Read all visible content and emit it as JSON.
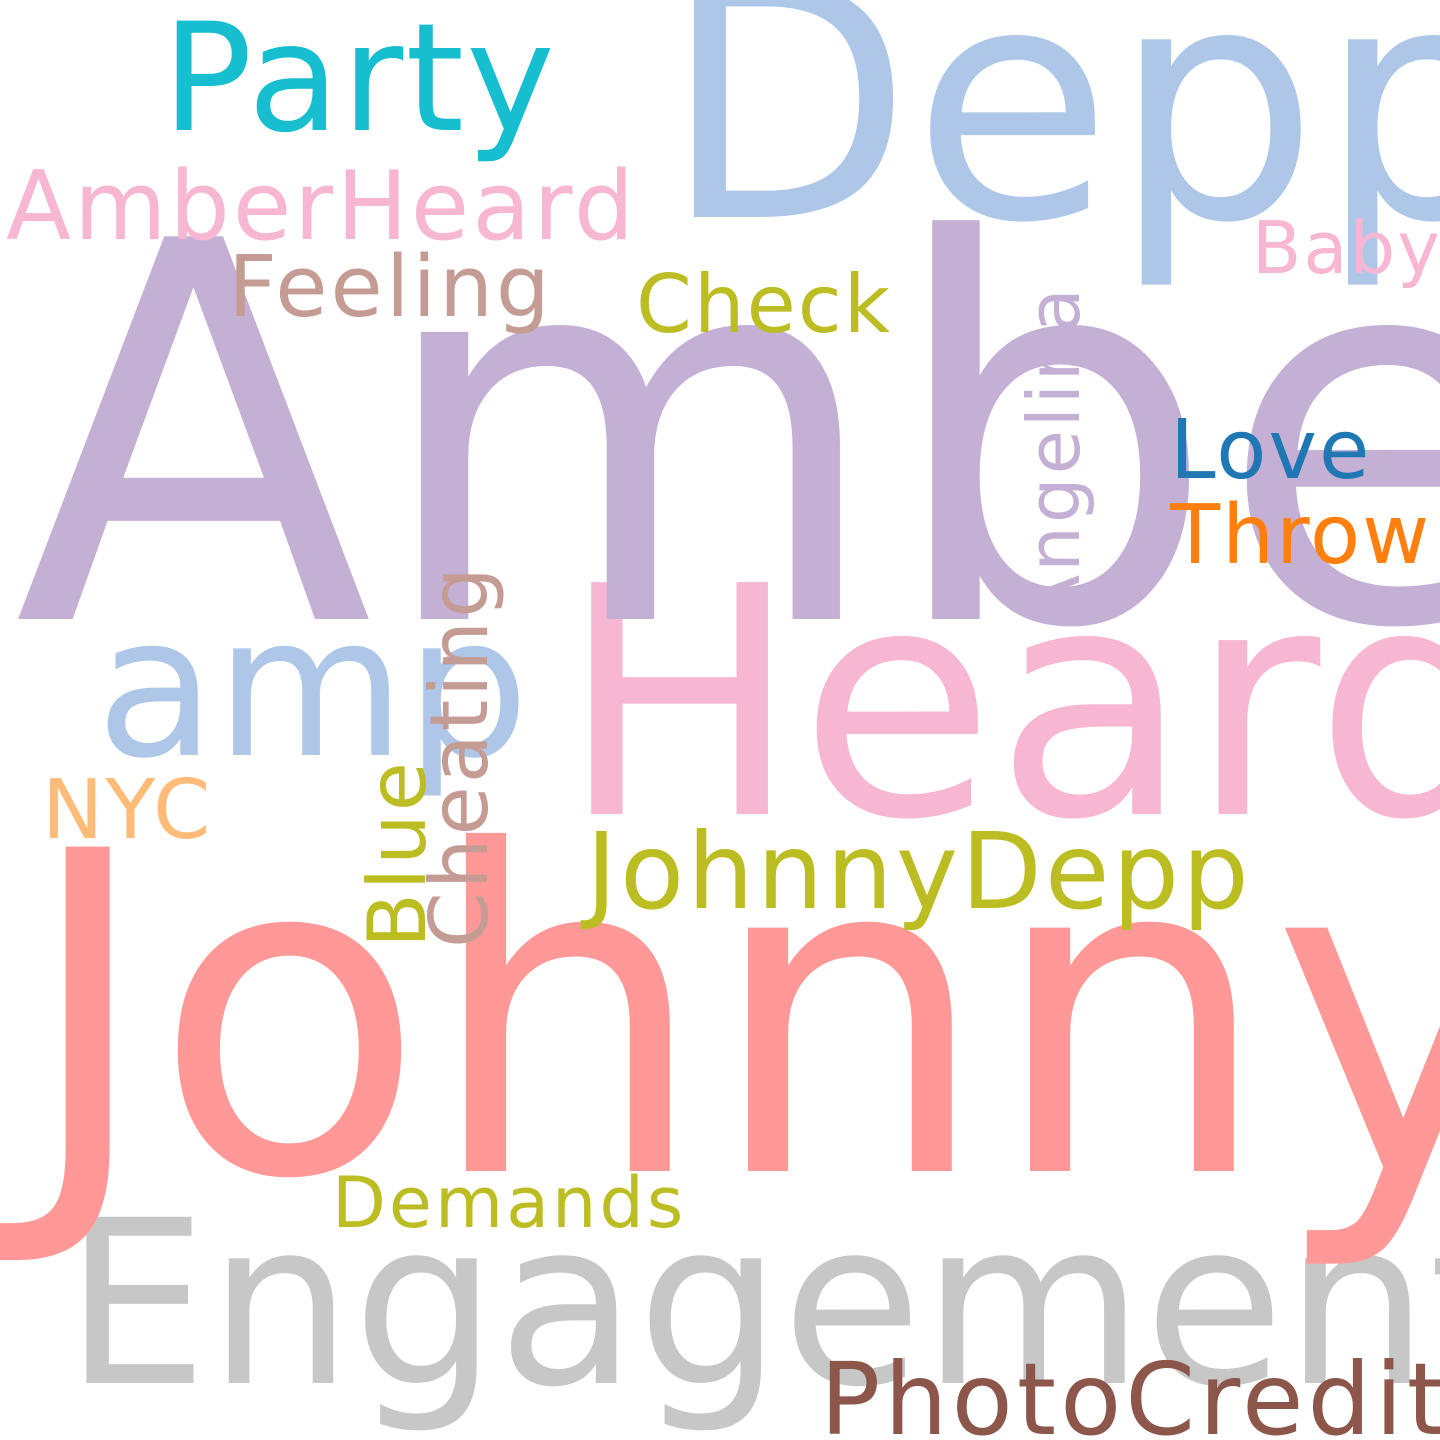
{
  "background": "#ffffff",
  "words": {
    "party": {
      "text": "Party",
      "color": "#17becf"
    },
    "depp": {
      "text": "Depp",
      "color": "#aec7e8"
    },
    "amberheard": {
      "text": "AmberHeard",
      "color": "#f7b6d2"
    },
    "baby": {
      "text": "Baby",
      "color": "#f7b6d2"
    },
    "feeling": {
      "text": "Feeling",
      "color": "#c49c94"
    },
    "check": {
      "text": "Check",
      "color": "#bcbd22"
    },
    "amber": {
      "text": "Amber",
      "color": "#c5b0d5"
    },
    "angelina": {
      "text": "Angelina",
      "color": "#c5b0d5"
    },
    "love": {
      "text": "Love",
      "color": "#1f77b4"
    },
    "throw": {
      "text": "Throw",
      "color": "#ff7f0e"
    },
    "amp": {
      "text": "amp",
      "color": "#aec7e8"
    },
    "heard": {
      "text": "Heard",
      "color": "#f7b6d2"
    },
    "cheating": {
      "text": "Cheating",
      "color": "#c49c94"
    },
    "blue": {
      "text": "Blue",
      "color": "#bcbd22"
    },
    "nyc": {
      "text": "NYC",
      "color": "#ffbb78"
    },
    "johnnydepp": {
      "text": "JohnnyDepp",
      "color": "#bcbd22"
    },
    "johnny": {
      "text": "Johnny",
      "color": "#ff9896"
    },
    "demands": {
      "text": "Demands",
      "color": "#bcbd22"
    },
    "engagement": {
      "text": "Engagement",
      "color": "#c7c7c7"
    },
    "photocredit": {
      "text": "PhotoCredit",
      "color": "#8c564b"
    }
  }
}
